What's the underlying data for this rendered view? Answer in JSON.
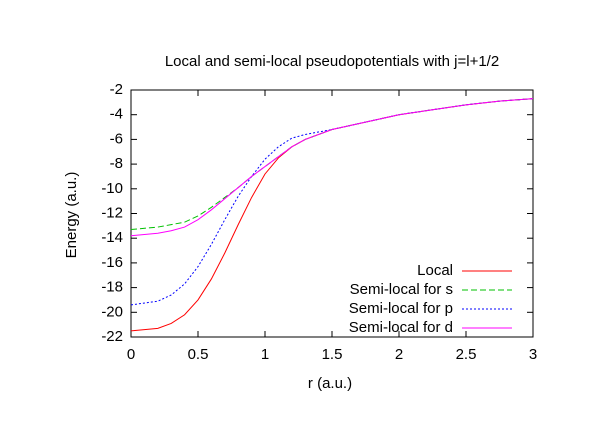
{
  "chart_data": {
    "type": "line",
    "title": "Local and semi-local pseudopotentials with j=l+1/2",
    "xlabel": "r (a.u.)",
    "ylabel": "Energy (a.u.)",
    "x": [
      0,
      0.2,
      0.3,
      0.4,
      0.5,
      0.6,
      0.7,
      0.8,
      0.9,
      1.0,
      1.1,
      1.2,
      1.3,
      1.5,
      1.75,
      2,
      2.25,
      2.5,
      2.75,
      3
    ],
    "series": [
      {
        "name": "Local",
        "color": "#ff0000",
        "linestyle": "solid",
        "values": [
          -21.5,
          -21.3,
          -20.9,
          -20.2,
          -19,
          -17.3,
          -15.2,
          -12.9,
          -10.7,
          -8.8,
          -7.5,
          -6.6,
          -6.0,
          -5.2,
          -4.6,
          -4.0,
          -3.6,
          -3.2,
          -2.9,
          -2.7
        ]
      },
      {
        "name": "Semi-local for s",
        "color": "#00c000",
        "linestyle": "dashed",
        "values": [
          -13.3,
          -13.1,
          -12.9,
          -12.7,
          -12.2,
          -11.5,
          -10.7,
          -9.9,
          -9.0,
          -8.2,
          -7.4,
          -6.6,
          -6.0,
          -5.2,
          -4.6,
          -4.0,
          -3.6,
          -3.2,
          -2.9,
          -2.7
        ]
      },
      {
        "name": "Semi-local for p",
        "color": "#0000ff",
        "linestyle": "dotted",
        "values": [
          -19.4,
          -19.1,
          -18.6,
          -17.7,
          -16.3,
          -14.5,
          -12.5,
          -10.6,
          -9.0,
          -7.6,
          -6.6,
          -5.9,
          -5.6,
          -5.2,
          -4.6,
          -4.0,
          -3.6,
          -3.2,
          -2.9,
          -2.7
        ]
      },
      {
        "name": "Semi-local for d",
        "color": "#ff00ff",
        "linestyle": "solid",
        "values": [
          -13.8,
          -13.6,
          -13.4,
          -13.1,
          -12.5,
          -11.7,
          -10.8,
          -9.9,
          -9.0,
          -8.2,
          -7.4,
          -6.6,
          -6.0,
          -5.2,
          -4.6,
          -4.0,
          -3.6,
          -3.2,
          -2.9,
          -2.7
        ]
      }
    ],
    "xlim": [
      0,
      3
    ],
    "xticks": [
      0,
      0.5,
      1,
      1.5,
      2,
      2.5,
      3
    ],
    "ylim": [
      -22,
      -2
    ],
    "yticks": [
      -22,
      -20,
      -18,
      -16,
      -14,
      -12,
      -10,
      -8,
      -6,
      -4,
      -2
    ],
    "grid": false,
    "legend": "lower right"
  }
}
